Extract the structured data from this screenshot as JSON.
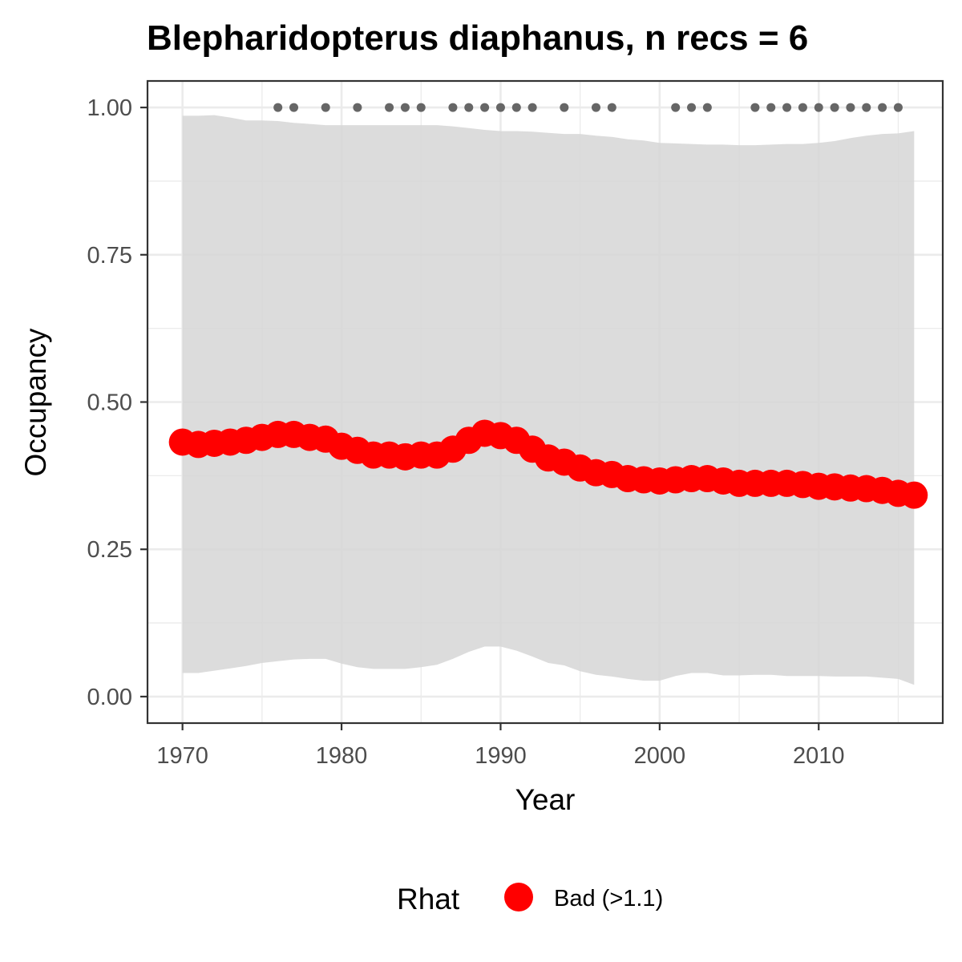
{
  "chart_data": {
    "type": "line",
    "title": "Blepharidopterus diaphanus, n recs = 6",
    "xlabel": "Year",
    "ylabel": "Occupancy",
    "xlim": [
      1967.8,
      2017.8
    ],
    "ylim": [
      -0.045,
      1.045
    ],
    "x_ticks": [
      1970,
      1980,
      1990,
      2000,
      2010
    ],
    "x_tick_labels": [
      "1970",
      "1980",
      "1990",
      "2000",
      "2010"
    ],
    "y_ticks": [
      0,
      0.25,
      0.5,
      0.75,
      1.0
    ],
    "y_tick_labels": [
      "0.00",
      "0.25",
      "0.50",
      "0.75",
      "1.00"
    ],
    "grid": true,
    "x": [
      1970,
      1971,
      1972,
      1973,
      1974,
      1975,
      1976,
      1977,
      1978,
      1979,
      1980,
      1981,
      1982,
      1983,
      1984,
      1985,
      1986,
      1987,
      1988,
      1989,
      1990,
      1991,
      1992,
      1993,
      1994,
      1995,
      1996,
      1997,
      1998,
      1999,
      2000,
      2001,
      2002,
      2003,
      2004,
      2005,
      2006,
      2007,
      2008,
      2009,
      2010,
      2011,
      2012,
      2013,
      2014,
      2015,
      2016
    ],
    "series": [
      {
        "name": "",
        "color": "#ff0000",
        "values": [
          0.432,
          0.428,
          0.43,
          0.432,
          0.435,
          0.44,
          0.445,
          0.445,
          0.44,
          0.437,
          0.425,
          0.418,
          0.41,
          0.41,
          0.407,
          0.41,
          0.41,
          0.42,
          0.435,
          0.447,
          0.443,
          0.435,
          0.42,
          0.405,
          0.398,
          0.388,
          0.38,
          0.377,
          0.37,
          0.368,
          0.366,
          0.368,
          0.37,
          0.37,
          0.366,
          0.362,
          0.362,
          0.362,
          0.362,
          0.36,
          0.357,
          0.356,
          0.354,
          0.353,
          0.35,
          0.345,
          0.342
        ]
      }
    ],
    "ci_upper": [
      0.986,
      0.986,
      0.987,
      0.983,
      0.978,
      0.978,
      0.977,
      0.974,
      0.972,
      0.97,
      0.97,
      0.97,
      0.97,
      0.97,
      0.97,
      0.97,
      0.97,
      0.968,
      0.965,
      0.962,
      0.96,
      0.96,
      0.959,
      0.957,
      0.955,
      0.955,
      0.952,
      0.95,
      0.946,
      0.944,
      0.94,
      0.939,
      0.938,
      0.937,
      0.937,
      0.936,
      0.936,
      0.937,
      0.938,
      0.938,
      0.94,
      0.943,
      0.948,
      0.952,
      0.955,
      0.956,
      0.96
    ],
    "ci_lower": [
      0.04,
      0.04,
      0.044,
      0.048,
      0.052,
      0.057,
      0.06,
      0.063,
      0.064,
      0.064,
      0.056,
      0.05,
      0.047,
      0.047,
      0.047,
      0.05,
      0.054,
      0.064,
      0.076,
      0.085,
      0.085,
      0.078,
      0.068,
      0.057,
      0.053,
      0.043,
      0.037,
      0.034,
      0.03,
      0.027,
      0.027,
      0.035,
      0.04,
      0.04,
      0.036,
      0.036,
      0.037,
      0.037,
      0.035,
      0.035,
      0.035,
      0.034,
      0.034,
      0.034,
      0.032,
      0.03,
      0.02
    ],
    "ci_color": "#d6d6d6",
    "record_years": [
      1976,
      1977,
      1979,
      1981,
      1983,
      1984,
      1985,
      1987,
      1988,
      1989,
      1990,
      1991,
      1992,
      1994,
      1996,
      1997,
      2001,
      2002,
      2003,
      2006,
      2007,
      2008,
      2009,
      2010,
      2011,
      2012,
      2013,
      2014,
      2015
    ],
    "record_marker_y": 1.0,
    "record_color": "#666666",
    "legend": {
      "title": "Rhat",
      "items": [
        {
          "label": "Bad (>1.1)",
          "color": "#ff0000"
        }
      ],
      "position": "bottom"
    }
  }
}
